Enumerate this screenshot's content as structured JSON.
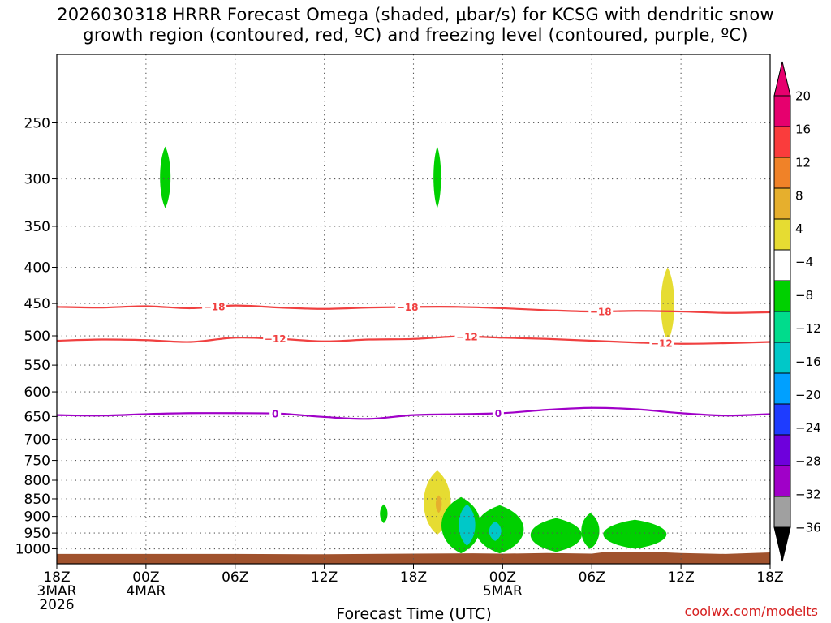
{
  "title_lines": [
    "2026030318 HRRR Forecast Omega (shaded, μbar/s) for KCSG with dendritic snow",
    "growth region (contoured, red, ºC) and freezing level (contoured, purple, ºC)"
  ],
  "xlabel": "Forecast Time (UTC)",
  "watermark": "coolwx.com/modelts",
  "chart_data": {
    "type": "heatmap",
    "x_unit": "hours since 18Z 3MAR 2026",
    "xlim": [
      0,
      48
    ],
    "x_ticks": [
      {
        "x": 0,
        "lines": [
          "18Z",
          "3MAR",
          "2026"
        ]
      },
      {
        "x": 6,
        "lines": [
          "00Z",
          "4MAR"
        ]
      },
      {
        "x": 12,
        "lines": [
          "06Z"
        ]
      },
      {
        "x": 18,
        "lines": [
          "12Z"
        ]
      },
      {
        "x": 24,
        "lines": [
          "18Z"
        ]
      },
      {
        "x": 30,
        "lines": [
          "00Z",
          "5MAR"
        ]
      },
      {
        "x": 36,
        "lines": [
          "06Z"
        ]
      },
      {
        "x": 42,
        "lines": [
          "12Z"
        ]
      },
      {
        "x": 48,
        "lines": [
          "18Z"
        ]
      }
    ],
    "y_scale": "log pressure (hPa), reversed",
    "ylim": [
      1050,
      200
    ],
    "y_ticks": [
      250,
      300,
      350,
      400,
      450,
      500,
      550,
      600,
      650,
      700,
      750,
      800,
      850,
      900,
      950,
      1000
    ],
    "grid": true,
    "colorbar": {
      "levels": [
        -36,
        -32,
        -28,
        -24,
        -20,
        -16,
        -12,
        -8,
        -4,
        4,
        8,
        12,
        16,
        20
      ],
      "labels": [
        "20",
        "16",
        "12",
        "8",
        "4",
        "−4",
        "−8",
        "−12",
        "−16",
        "−20",
        "−24",
        "−28",
        "−32",
        "−36"
      ],
      "colors": [
        "#a0a0a0",
        "#a000c8",
        "#6e00dc",
        "#1e3cff",
        "#00a0ff",
        "#00c8c8",
        "#00dc8c",
        "#00d000",
        "#ffffff",
        "#e6dc32",
        "#e6af2d",
        "#f08228",
        "#fa3c3c",
        "#e6006e"
      ],
      "below_color": "#000000",
      "above_color": "#e6006e"
    },
    "omega_blobs": [
      {
        "x": 7.3,
        "p_top": 270,
        "p_bottom": 330,
        "half_width_h": 0.35,
        "value": -6
      },
      {
        "x": 25.6,
        "p_top": 270,
        "p_bottom": 330,
        "half_width_h": 0.25,
        "value": -6
      },
      {
        "x": 41.1,
        "p_top": 400,
        "p_bottom": 510,
        "half_width_h": 0.45,
        "value": 5
      },
      {
        "x": 22.0,
        "p_top": 865,
        "p_bottom": 920,
        "half_width_h": 0.25,
        "value": -6
      },
      {
        "x": 25.6,
        "p_top": 775,
        "p_bottom": 955,
        "half_width_h": 0.9,
        "value": 5
      },
      {
        "x": 25.7,
        "p_top": 840,
        "p_bottom": 890,
        "half_width_h": 0.2,
        "value": 9
      },
      {
        "x": 29.8,
        "p_top": 868,
        "p_bottom": 1015,
        "half_width_h": 1.6,
        "value": -6
      },
      {
        "x": 27.2,
        "p_top": 845,
        "p_bottom": 1015,
        "half_width_h": 1.3,
        "value": -6
      },
      {
        "x": 29.5,
        "p_top": 915,
        "p_bottom": 975,
        "half_width_h": 0.4,
        "value": -13
      },
      {
        "x": 27.6,
        "p_top": 865,
        "p_bottom": 990,
        "half_width_h": 0.55,
        "value": -13
      },
      {
        "x": 33.6,
        "p_top": 905,
        "p_bottom": 1010,
        "half_width_h": 1.7,
        "value": -6
      },
      {
        "x": 35.9,
        "p_top": 890,
        "p_bottom": 1000,
        "half_width_h": 0.6,
        "value": -6
      },
      {
        "x": 38.9,
        "p_top": 910,
        "p_bottom": 1000,
        "half_width_h": 2.1,
        "value": -6
      }
    ],
    "contours": [
      {
        "label": "−18",
        "color": "#f04040",
        "x": [
          0,
          3,
          6,
          9,
          12,
          15,
          18,
          21,
          24,
          27,
          30,
          33,
          36,
          39,
          42,
          45,
          48
        ],
        "p": [
          455,
          456,
          454,
          457,
          453,
          456,
          458,
          456,
          455,
          455,
          457,
          460,
          462,
          461,
          462,
          464,
          463
        ],
        "label_x": [
          10.6,
          23.6,
          36.6
        ]
      },
      {
        "label": "−12",
        "color": "#f04040",
        "x": [
          0,
          3,
          6,
          9,
          12,
          15,
          18,
          21,
          24,
          27,
          30,
          33,
          36,
          39,
          42,
          45,
          48
        ],
        "p": [
          508,
          506,
          507,
          510,
          503,
          505,
          509,
          506,
          505,
          501,
          503,
          505,
          508,
          511,
          513,
          512,
          510
        ],
        "label_x": [
          14.7,
          27.6,
          40.7
        ]
      },
      {
        "label": "0",
        "color": "#a000c8",
        "x": [
          0,
          3,
          6,
          9,
          12,
          15,
          18,
          21,
          24,
          27,
          30,
          33,
          36,
          39,
          42,
          45,
          48
        ],
        "p": [
          647,
          648,
          645,
          643,
          643,
          644,
          651,
          655,
          647,
          645,
          643,
          636,
          632,
          635,
          643,
          648,
          645
        ],
        "label_x": [
          14.7,
          29.7
        ]
      }
    ],
    "terrain": {
      "color": "#a0522d",
      "x": [
        0,
        6,
        12,
        18,
        24,
        28,
        30,
        33,
        36,
        37,
        40,
        42,
        45,
        48
      ],
      "p": [
        1017,
        1017,
        1017,
        1018,
        1016,
        1015,
        1016,
        1014,
        1016,
        1010,
        1010,
        1014,
        1017,
        1012
      ]
    }
  }
}
